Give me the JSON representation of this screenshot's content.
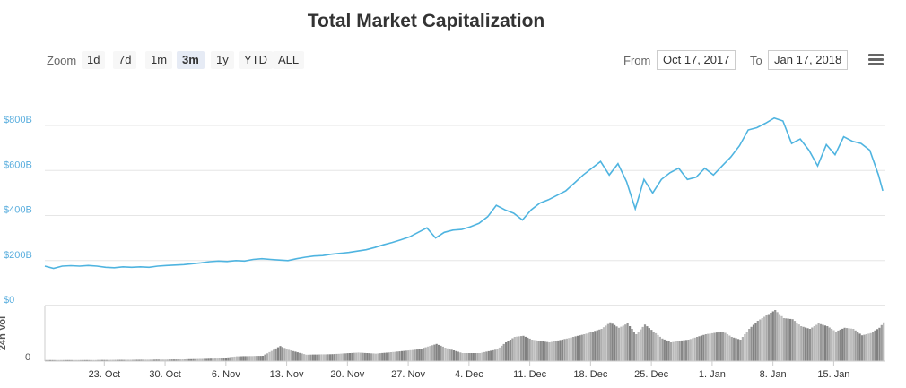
{
  "header": {
    "title": "Total Market Capitalization"
  },
  "toolbar": {
    "zoom_label": "Zoom",
    "zoom_buttons": [
      "1d",
      "7d",
      "1m",
      "3m",
      "1y",
      "YTD",
      "ALL"
    ],
    "active_zoom": "3m",
    "from_label": "From",
    "from_value": "Oct 17, 2017",
    "to_label": "To",
    "to_value": "Jan 17, 2018"
  },
  "colors": {
    "line": "#4fb4e0",
    "volume": "#808080",
    "grid": "#e6e6e6",
    "axis_text": "#5aaede"
  },
  "icons": {
    "menu": "hamburger-menu-icon"
  },
  "chart_data": {
    "type": "line",
    "title": "Total Market Capitalization",
    "y_tick_labels": [
      "$0",
      "$200B",
      "$400B",
      "$600B",
      "$800B"
    ],
    "y_ticks": [
      0,
      200,
      400,
      600,
      800
    ],
    "ylim": [
      0,
      900
    ],
    "volume_axis_label": "24h Vol",
    "volume_tick_label": "0",
    "x_tick_labels": [
      "23. Oct",
      "30. Oct",
      "6. Nov",
      "13. Nov",
      "20. Nov",
      "27. Nov",
      "4. Dec",
      "11. Dec",
      "18. Dec",
      "25. Dec",
      "1. Jan",
      "8. Jan",
      "15. Jan"
    ],
    "x_ticks": [
      6,
      13,
      20,
      27,
      34,
      41,
      48,
      55,
      62,
      69,
      76,
      83,
      90
    ],
    "xlim": [
      0,
      92.5
    ],
    "series": [
      {
        "values": [
          [
            0,
            175
          ],
          [
            1,
            165
          ],
          [
            2,
            175
          ],
          [
            3,
            177
          ],
          [
            4,
            175
          ],
          [
            5,
            178
          ],
          [
            6,
            175
          ],
          [
            7,
            170
          ],
          [
            8,
            168
          ],
          [
            9,
            172
          ],
          [
            10,
            170
          ],
          [
            11,
            172
          ],
          [
            12,
            170
          ],
          [
            13,
            175
          ],
          [
            14,
            178
          ],
          [
            15,
            180
          ],
          [
            16,
            182
          ],
          [
            17,
            186
          ],
          [
            18,
            190
          ],
          [
            19,
            195
          ],
          [
            20,
            198
          ],
          [
            21,
            196
          ],
          [
            22,
            200
          ],
          [
            23,
            198
          ],
          [
            24,
            205
          ],
          [
            25,
            208
          ],
          [
            26,
            205
          ],
          [
            27,
            202
          ],
          [
            28,
            200
          ],
          [
            29,
            208
          ],
          [
            30,
            215
          ],
          [
            31,
            220
          ],
          [
            32,
            222
          ],
          [
            33,
            228
          ],
          [
            34,
            232
          ],
          [
            35,
            236
          ],
          [
            36,
            242
          ],
          [
            37,
            248
          ],
          [
            38,
            258
          ],
          [
            39,
            270
          ],
          [
            40,
            280
          ],
          [
            41,
            292
          ],
          [
            42,
            305
          ],
          [
            43,
            325
          ],
          [
            44,
            345
          ],
          [
            45,
            300
          ],
          [
            46,
            325
          ],
          [
            47,
            335
          ],
          [
            48,
            338
          ],
          [
            49,
            350
          ],
          [
            50,
            365
          ],
          [
            51,
            395
          ],
          [
            52,
            445
          ],
          [
            53,
            425
          ],
          [
            54,
            410
          ],
          [
            55,
            380
          ],
          [
            56,
            425
          ],
          [
            57,
            455
          ],
          [
            58,
            470
          ],
          [
            59,
            490
          ],
          [
            60,
            510
          ],
          [
            61,
            545
          ],
          [
            62,
            580
          ],
          [
            63,
            610
          ],
          [
            64,
            640
          ],
          [
            65,
            580
          ],
          [
            66,
            630
          ],
          [
            67,
            550
          ],
          [
            68,
            430
          ],
          [
            69,
            560
          ],
          [
            70,
            500
          ],
          [
            71,
            560
          ],
          [
            72,
            590
          ],
          [
            73,
            610
          ],
          [
            74,
            560
          ],
          [
            75,
            570
          ],
          [
            76,
            610
          ],
          [
            77,
            580
          ],
          [
            78,
            620
          ],
          [
            79,
            660
          ],
          [
            80,
            710
          ],
          [
            81,
            780
          ],
          [
            82,
            790
          ],
          [
            83,
            810
          ],
          [
            84,
            833
          ],
          [
            85,
            820
          ],
          [
            86,
            720
          ],
          [
            87,
            740
          ],
          [
            88,
            690
          ],
          [
            89,
            620
          ],
          [
            90,
            715
          ],
          [
            91,
            670
          ],
          [
            92,
            750
          ],
          [
            93,
            730
          ],
          [
            94,
            720
          ],
          [
            95,
            690
          ],
          [
            96,
            580
          ],
          [
            96.5,
            510
          ]
        ]
      }
    ],
    "volume": [
      [
        0,
        2
      ],
      [
        5,
        2
      ],
      [
        10,
        2.5
      ],
      [
        15,
        3
      ],
      [
        20,
        5
      ],
      [
        22,
        9
      ],
      [
        25,
        10
      ],
      [
        27,
        28
      ],
      [
        28,
        21
      ],
      [
        30,
        12
      ],
      [
        33,
        13
      ],
      [
        36,
        16
      ],
      [
        38,
        14
      ],
      [
        40,
        17
      ],
      [
        43,
        22
      ],
      [
        45,
        32
      ],
      [
        46,
        25
      ],
      [
        48,
        15
      ],
      [
        50,
        15
      ],
      [
        52,
        22
      ],
      [
        53,
        35
      ],
      [
        54,
        45
      ],
      [
        55,
        47
      ],
      [
        56,
        40
      ],
      [
        58,
        35
      ],
      [
        60,
        42
      ],
      [
        62,
        50
      ],
      [
        64,
        60
      ],
      [
        65,
        72
      ],
      [
        66,
        62
      ],
      [
        67,
        70
      ],
      [
        68,
        50
      ],
      [
        69,
        68
      ],
      [
        70,
        55
      ],
      [
        71,
        42
      ],
      [
        72,
        35
      ],
      [
        73,
        38
      ],
      [
        74,
        40
      ],
      [
        75,
        45
      ],
      [
        76,
        50
      ],
      [
        78,
        55
      ],
      [
        79,
        45
      ],
      [
        80,
        40
      ],
      [
        81,
        60
      ],
      [
        82,
        75
      ],
      [
        83,
        85
      ],
      [
        84,
        95
      ],
      [
        85,
        80
      ],
      [
        86,
        78
      ],
      [
        87,
        65
      ],
      [
        88,
        60
      ],
      [
        89,
        70
      ],
      [
        90,
        65
      ],
      [
        91,
        55
      ],
      [
        92,
        62
      ],
      [
        93,
        60
      ],
      [
        94,
        48
      ],
      [
        95,
        52
      ],
      [
        96,
        62
      ],
      [
        96.5,
        72
      ]
    ]
  }
}
